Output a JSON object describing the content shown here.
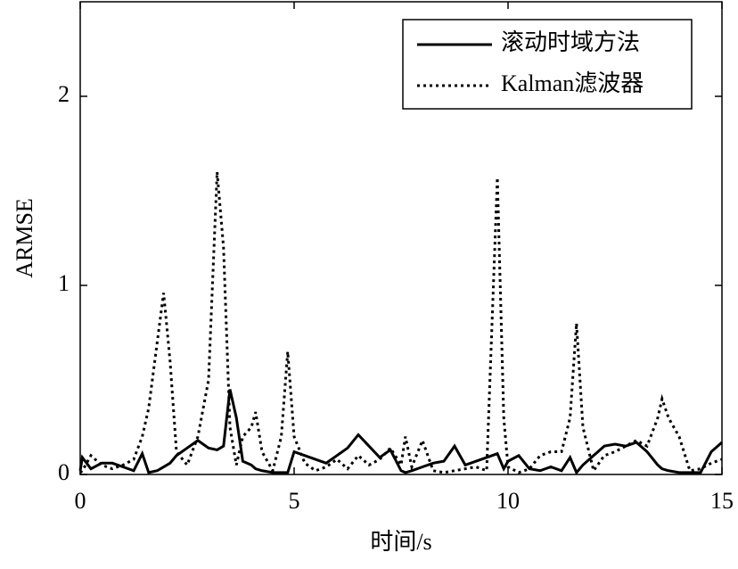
{
  "chart_data": {
    "type": "line",
    "x_label": "时间/s",
    "y_label": "ARMSE",
    "x": [
      0,
      0.05,
      0.25,
      0.5,
      0.75,
      1,
      1.25,
      1.45,
      1.6,
      1.8,
      1.95,
      2.1,
      2.25,
      2.5,
      2.75,
      3,
      3.2,
      3.35,
      3.5,
      3.65,
      3.8,
      4,
      4.1,
      4.25,
      4.5,
      4.7,
      4.85,
      5,
      5.25,
      5.5,
      5.75,
      6,
      6.25,
      6.5,
      6.75,
      7,
      7.25,
      7.5,
      7.6,
      7.75,
      8,
      8.25,
      8.5,
      8.75,
      9,
      9.25,
      9.5,
      9.75,
      9.9,
      10,
      10.25,
      10.5,
      10.75,
      11,
      11.25,
      11.45,
      11.6,
      11.75,
      12,
      12.25,
      12.5,
      12.75,
      13,
      13.25,
      13.5,
      13.6,
      13.75,
      14,
      14.25,
      14.5,
      14.75,
      15
    ],
    "series": [
      {
        "name": "滚动时域方法",
        "color": "#000000",
        "line_style": "solid",
        "values": [
          0.02,
          0.09,
          0.03,
          0.06,
          0.06,
          0.04,
          0.02,
          0.11,
          0.01,
          0.02,
          0.04,
          0.06,
          0.1,
          0.14,
          0.18,
          0.14,
          0.13,
          0.15,
          0.45,
          0.3,
          0.07,
          0.05,
          0.03,
          0.02,
          0.01,
          0.01,
          0.01,
          0.12,
          0.1,
          0.08,
          0.06,
          0.1,
          0.14,
          0.21,
          0.15,
          0.09,
          0.13,
          0.02,
          0.01,
          0.02,
          0.04,
          0.06,
          0.07,
          0.15,
          0.05,
          0.07,
          0.09,
          0.11,
          0.03,
          0.07,
          0.1,
          0.03,
          0.02,
          0.04,
          0.02,
          0.09,
          0.01,
          0.05,
          0.1,
          0.15,
          0.16,
          0.15,
          0.17,
          0.12,
          0.05,
          0.03,
          0.02,
          0.01,
          0.01,
          0.01,
          0.12,
          0.17
        ]
      },
      {
        "name": "Kalman滤波器",
        "color": "#000000",
        "line_style": "dotted",
        "values": [
          0.01,
          0.02,
          0.1,
          0.05,
          0.03,
          0.05,
          0.08,
          0.2,
          0.35,
          0.7,
          0.96,
          0.6,
          0.12,
          0.05,
          0.2,
          0.5,
          1.6,
          1.2,
          0.25,
          0.05,
          0.2,
          0.25,
          0.33,
          0.12,
          0.02,
          0.2,
          0.65,
          0.2,
          0.06,
          0.02,
          0.04,
          0.08,
          0.03,
          0.1,
          0.05,
          0.08,
          0.14,
          0.05,
          0.2,
          0.04,
          0.18,
          0.02,
          0.01,
          0.02,
          0.03,
          0.04,
          0.02,
          1.57,
          0.3,
          0.04,
          0.01,
          0.03,
          0.1,
          0.12,
          0.12,
          0.3,
          0.8,
          0.25,
          0.02,
          0.1,
          0.12,
          0.15,
          0.18,
          0.15,
          0.3,
          0.4,
          0.3,
          0.2,
          0.02,
          0.03,
          0.06,
          0.08
        ]
      }
    ],
    "xlim": [
      0,
      15
    ],
    "xticks": [
      0,
      5,
      10,
      15
    ],
    "ylim": [
      0,
      2.5
    ],
    "yticks": [
      0,
      1,
      2
    ],
    "legend": "upper right"
  }
}
